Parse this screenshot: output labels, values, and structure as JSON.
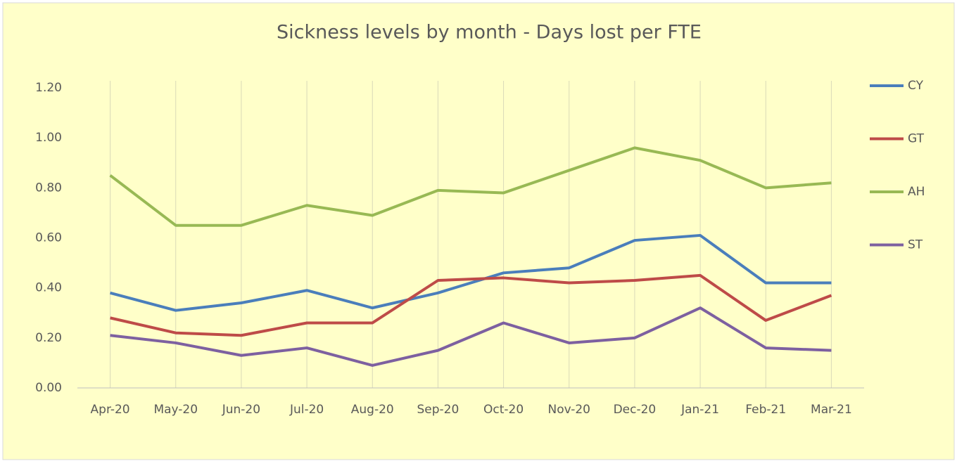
{
  "chart_data": {
    "type": "line",
    "title": "Sickness levels by month - Days lost per FTE",
    "categories": [
      "Apr-20",
      "May-20",
      "Jun-20",
      "Jul-20",
      "Aug-20",
      "Sep-20",
      "Oct-20",
      "Nov-20",
      "Dec-20",
      "Jan-21",
      "Feb-21",
      "Mar-21"
    ],
    "series": [
      {
        "name": "CY",
        "color": "#4a7ebb",
        "values": [
          0.38,
          0.31,
          0.34,
          0.39,
          0.32,
          0.38,
          0.46,
          0.48,
          0.59,
          0.61,
          0.42,
          0.42
        ]
      },
      {
        "name": "GT",
        "color": "#be4b48",
        "values": [
          0.28,
          0.22,
          0.21,
          0.26,
          0.26,
          0.43,
          0.44,
          0.42,
          0.43,
          0.45,
          0.27,
          0.37
        ]
      },
      {
        "name": "AH",
        "color": "#98b954",
        "values": [
          0.85,
          0.65,
          0.65,
          0.73,
          0.69,
          0.79,
          0.78,
          0.87,
          0.96,
          0.91,
          0.8,
          0.82
        ]
      },
      {
        "name": "ST",
        "color": "#7d60a0",
        "values": [
          0.21,
          0.18,
          0.13,
          0.16,
          0.09,
          0.15,
          0.26,
          0.18,
          0.2,
          0.32,
          0.16,
          0.15
        ]
      }
    ],
    "ylim": [
      0,
      1.2
    ],
    "yticks": [
      {
        "value": 0,
        "label": "0.00"
      },
      {
        "value": 0.2,
        "label": "0.20"
      },
      {
        "value": 0.4,
        "label": "0.40"
      },
      {
        "value": 0.6,
        "label": "0.60"
      },
      {
        "value": 0.8,
        "label": "0.80"
      },
      {
        "value": 1.0,
        "label": "1.00"
      },
      {
        "value": 1.2,
        "label": "1.20"
      }
    ],
    "vertical_grid": true,
    "legend": "right"
  }
}
